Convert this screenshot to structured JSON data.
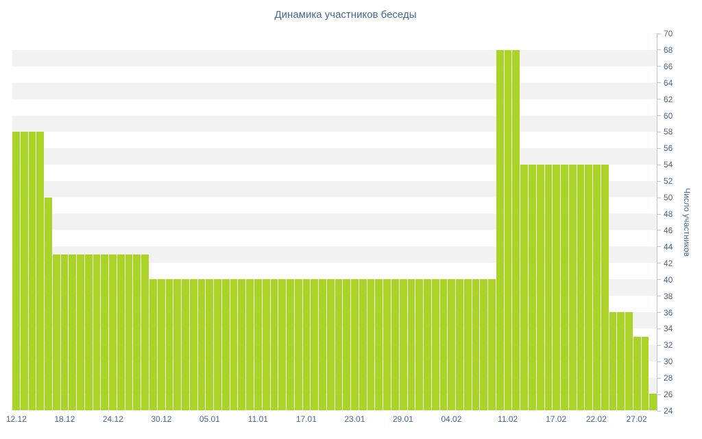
{
  "page": {
    "background": "#ffffff"
  },
  "chart_data": {
    "type": "bar",
    "title": "Динамика участников беседы",
    "xlabel": "",
    "ylabel": "Число участников",
    "ylim": [
      24,
      70
    ],
    "ytick_step": 2,
    "grid": "horizontal-bands",
    "legend": "none",
    "bar_color": "#aad428",
    "band_color": "#f2f2f2",
    "axis_text_color": "#45688e",
    "axis_line_color": "#b9c4d2",
    "categories": [
      "12.12",
      "13.12",
      "14.12",
      "15.12",
      "16.12",
      "17.12",
      "18.12",
      "19.12",
      "20.12",
      "21.12",
      "22.12",
      "23.12",
      "24.12",
      "25.12",
      "26.12",
      "27.12",
      "28.12",
      "29.12",
      "30.12",
      "31.12",
      "01.01",
      "02.01",
      "03.01",
      "04.01",
      "05.01",
      "06.01",
      "07.01",
      "08.01",
      "09.01",
      "10.01",
      "11.01",
      "12.01",
      "13.01",
      "14.01",
      "15.01",
      "16.01",
      "17.01",
      "18.01",
      "19.01",
      "20.01",
      "21.01",
      "22.01",
      "23.01",
      "24.01",
      "25.01",
      "26.01",
      "27.01",
      "28.01",
      "29.01",
      "30.01",
      "31.01",
      "01.02",
      "02.02",
      "03.02",
      "04.02",
      "05.02",
      "06.02",
      "07.02",
      "08.02",
      "09.02",
      "10.02",
      "11.02",
      "12.02",
      "13.02",
      "14.02",
      "15.02",
      "16.02",
      "17.02",
      "18.02",
      "19.02",
      "20.02",
      "21.02",
      "22.02",
      "23.02",
      "24.02",
      "25.02",
      "26.02",
      "27.02",
      "28.02",
      "01.03"
    ],
    "values": [
      58,
      58,
      58,
      58,
      50,
      43,
      43,
      43,
      43,
      43,
      43,
      43,
      43,
      43,
      43,
      43,
      43,
      40,
      40,
      40,
      40,
      40,
      40,
      40,
      40,
      40,
      40,
      40,
      40,
      40,
      40,
      40,
      40,
      40,
      40,
      40,
      40,
      40,
      40,
      40,
      40,
      40,
      40,
      40,
      40,
      40,
      40,
      40,
      40,
      40,
      40,
      40,
      40,
      40,
      40,
      40,
      40,
      40,
      40,
      40,
      68,
      68,
      68,
      54,
      54,
      54,
      54,
      54,
      54,
      54,
      54,
      54,
      54,
      54,
      36,
      36,
      36,
      33,
      33,
      26
    ],
    "x_axis_labels": [
      {
        "label": "12.12",
        "index": 0
      },
      {
        "label": "18.12",
        "index": 6
      },
      {
        "label": "24.12",
        "index": 12
      },
      {
        "label": "30.12",
        "index": 18
      },
      {
        "label": "05.01",
        "index": 24
      },
      {
        "label": "11.01",
        "index": 30
      },
      {
        "label": "17.01",
        "index": 36
      },
      {
        "label": "23.01",
        "index": 42
      },
      {
        "label": "29.01",
        "index": 48
      },
      {
        "label": "04.02",
        "index": 54
      },
      {
        "label": "11.02",
        "index": 61
      },
      {
        "label": "17.02",
        "index": 67
      },
      {
        "label": "22.02",
        "index": 72
      },
      {
        "label": "27.02",
        "index": 77
      }
    ]
  }
}
